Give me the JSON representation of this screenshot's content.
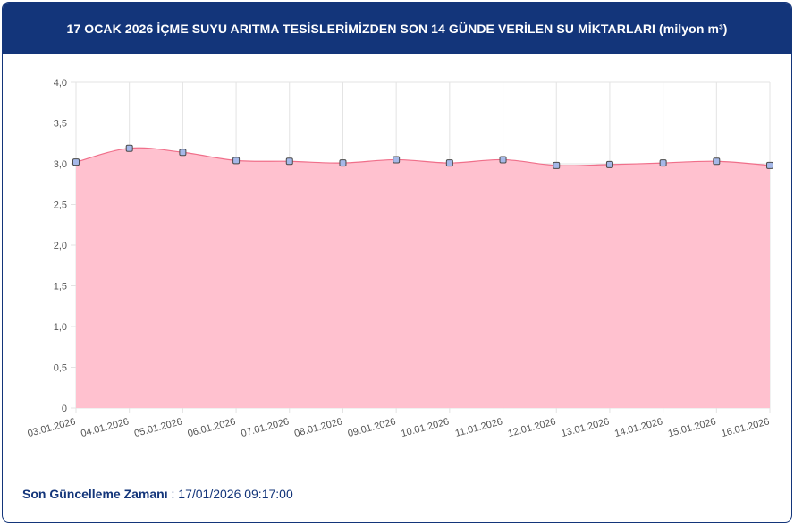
{
  "header": {
    "title": "17 OCAK 2026 İÇME SUYU ARITMA TESİSLERİMİZDEN SON 14 GÜNDE VERİLEN SU MİKTARLARI (milyon m³)"
  },
  "chart_data": {
    "type": "area",
    "categories": [
      "03.01.2026",
      "04.01.2026",
      "05.01.2026",
      "06.01.2026",
      "07.01.2026",
      "08.01.2026",
      "09.01.2026",
      "10.01.2026",
      "11.01.2026",
      "12.01.2026",
      "13.01.2026",
      "14.01.2026",
      "15.01.2026",
      "16.01.2026"
    ],
    "series": [
      {
        "values": [
          3.02,
          3.19,
          3.14,
          3.04,
          3.03,
          3.01,
          3.05,
          3.01,
          3.05,
          2.98,
          2.99,
          3.01,
          3.03,
          2.98
        ]
      }
    ],
    "y_ticks": [
      "0",
      "0,5",
      "1,0",
      "1,5",
      "2,0",
      "2,5",
      "3,0",
      "3,5",
      "4,0"
    ],
    "ylim": [
      0,
      4
    ],
    "grid": true,
    "colors": {
      "line": "#f06f8a",
      "fill": "#ffc1cf",
      "point_fill": "#a5b8e8",
      "point_stroke": "#4a4a4a",
      "grid": "#e3e3e3",
      "axis_text": "#555555"
    }
  },
  "footer": {
    "label": "Son Güncelleme Zamanı",
    "separator": " : ",
    "value": "17/01/2026 09:17:00"
  }
}
